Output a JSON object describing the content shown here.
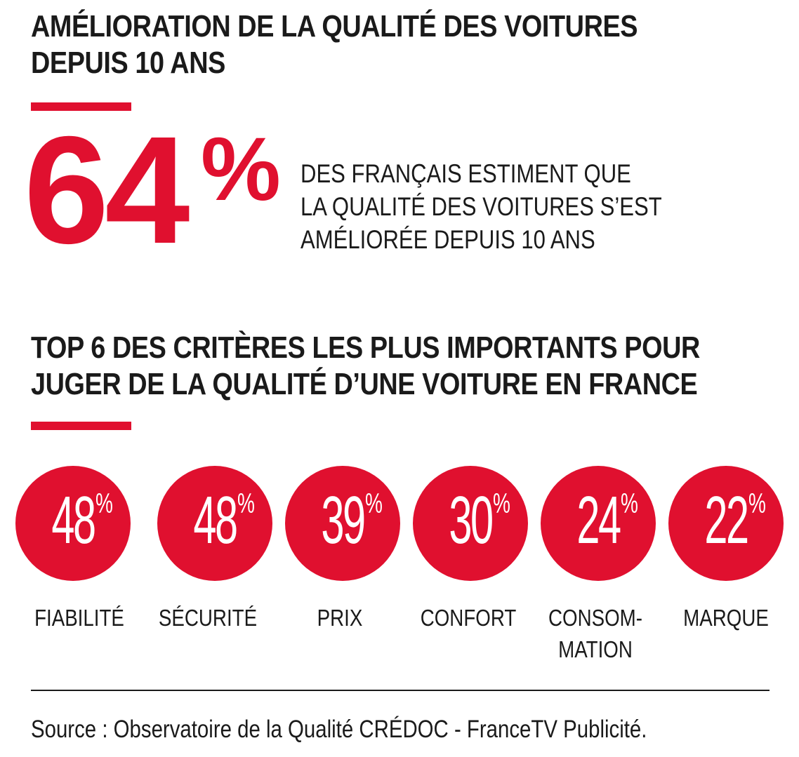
{
  "title1_lines": [
    "AMÉLIORATION DE LA QUALITÉ DES VOITURES",
    "DEPUIS 10 ANS"
  ],
  "headline": {
    "number": "64",
    "percent_sign": "%",
    "statement_lines": [
      "DES FRANÇAIS ESTIMENT QUE",
      "LA QUALITÉ DES VOITURES S’EST",
      "AMÉLIORÉE DEPUIS 10 ANS"
    ]
  },
  "title2_lines": [
    "TOP 6 DES CRITÈRES LES PLUS IMPORTANTS POUR",
    "JUGER DE LA QUALITÉ D’UNE VOITURE EN FRANCE"
  ],
  "criteria": [
    {
      "value": "48",
      "label": "FIABILITÉ"
    },
    {
      "value": "48",
      "label": "SÉCURITÉ"
    },
    {
      "value": "39",
      "label": "PRIX"
    },
    {
      "value": "30",
      "label": "CONFORT"
    },
    {
      "value": "24",
      "label": "CONSOM-\nMATION"
    },
    {
      "value": "22",
      "label": "MARQUE"
    }
  ],
  "percent_symbol": "%",
  "source": "Source : Observatoire de la Qualité CRÉDOC - FranceTV Publicité.",
  "colors": {
    "accent": "#e0102f",
    "text": "#1a1a1a",
    "background": "#ffffff"
  }
}
